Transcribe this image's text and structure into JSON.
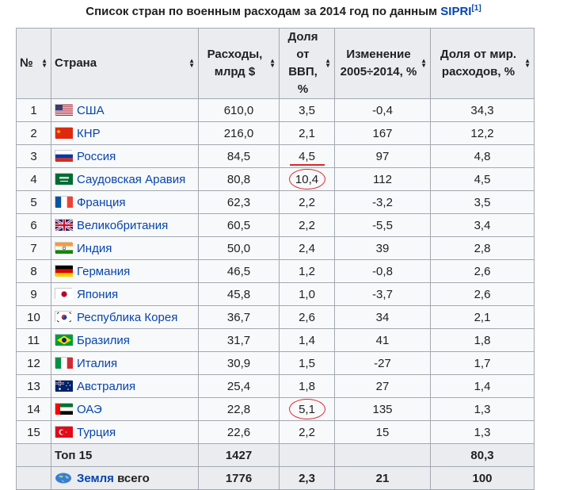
{
  "caption": {
    "text": "Список стран по военным расходам за 2014 год по данным",
    "link": "SIPRI",
    "ref": "[1]"
  },
  "headers": {
    "rank": "№",
    "country": "Страна",
    "spending_1": "Расходы,",
    "spending_2": "млрд $",
    "gdp_1": "Доля от",
    "gdp_2": "ВВП, %",
    "change_1": "Изменение",
    "change_2": "2005÷2014, %",
    "world_1": "Доля от мир.",
    "world_2": "расходов, %"
  },
  "rows": [
    {
      "rank": "1",
      "country": "США",
      "spending": "610,0",
      "gdp": "3,5",
      "change": "-0,4",
      "world": "34,3",
      "flag": "us-flag"
    },
    {
      "rank": "2",
      "country": "КНР",
      "spending": "216,0",
      "gdp": "2,1",
      "change": "167",
      "world": "12,2",
      "flag": "china-flag"
    },
    {
      "rank": "3",
      "country": "Россия",
      "spending": "84,5",
      "gdp": "4,5",
      "change": "97",
      "world": "4,8",
      "flag": "russia-flag"
    },
    {
      "rank": "4",
      "country": "Саудовская Аравия",
      "spending": "80,8",
      "gdp": "10,4",
      "change": "112",
      "world": "4,5",
      "flag": "saudi-arabia-flag"
    },
    {
      "rank": "5",
      "country": "Франция",
      "spending": "62,3",
      "gdp": "2,2",
      "change": "-3,2",
      "world": "3,5",
      "flag": "france-flag"
    },
    {
      "rank": "6",
      "country": "Великобритания",
      "spending": "60,5",
      "gdp": "2,2",
      "change": "-5,5",
      "world": "3,4",
      "flag": "uk-flag"
    },
    {
      "rank": "7",
      "country": "Индия",
      "spending": "50,0",
      "gdp": "2,4",
      "change": "39",
      "world": "2,8",
      "flag": "india-flag"
    },
    {
      "rank": "8",
      "country": "Германия",
      "spending": "46,5",
      "gdp": "1,2",
      "change": "-0,8",
      "world": "2,6",
      "flag": "germany-flag"
    },
    {
      "rank": "9",
      "country": "Япония",
      "spending": "45,8",
      "gdp": "1,0",
      "change": "-3,7",
      "world": "2,6",
      "flag": "japan-flag"
    },
    {
      "rank": "10",
      "country": "Республика Корея",
      "spending": "36,7",
      "gdp": "2,6",
      "change": "34",
      "world": "2,1",
      "flag": "south-korea-flag"
    },
    {
      "rank": "11",
      "country": "Бразилия",
      "spending": "31,7",
      "gdp": "1,4",
      "change": "41",
      "world": "1,8",
      "flag": "brazil-flag"
    },
    {
      "rank": "12",
      "country": "Италия",
      "spending": "30,9",
      "gdp": "1,5",
      "change": "-27",
      "world": "1,7",
      "flag": "italy-flag"
    },
    {
      "rank": "13",
      "country": "Австралия",
      "spending": "25,4",
      "gdp": "1,8",
      "change": "27",
      "world": "1,4",
      "flag": "australia-flag"
    },
    {
      "rank": "14",
      "country": "ОАЭ",
      "spending": "22,8",
      "gdp": "5,1",
      "change": "135",
      "world": "1,3",
      "flag": "uae-flag"
    },
    {
      "rank": "15",
      "country": "Турция",
      "spending": "22,6",
      "gdp": "2,2",
      "change": "15",
      "world": "1,3",
      "flag": "turkey-flag"
    }
  ],
  "top15": {
    "label": "Топ 15",
    "spending": "1427",
    "world": "80,3"
  },
  "world": {
    "label_link": "Земля",
    "label_rest": " всего",
    "spending": "1776",
    "gdp": "2,3",
    "change": "21",
    "world": "100"
  },
  "annotation_color": "#d9262d",
  "link_color": "#0645ad"
}
